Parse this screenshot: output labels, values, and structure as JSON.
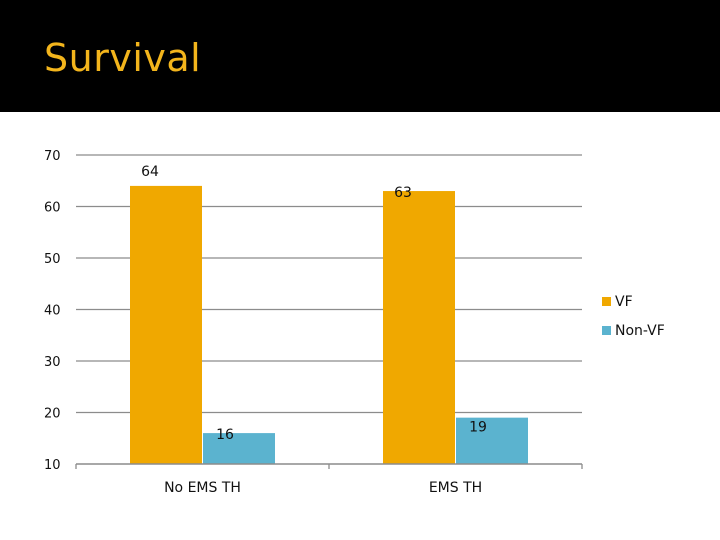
{
  "header": {
    "title": "Survival"
  },
  "colors": {
    "title": "#f3b51c",
    "band": "#000000",
    "vf": "#f0a800",
    "nonvf": "#5bb3cf"
  },
  "chart_data": {
    "type": "bar",
    "title": "Survival",
    "xlabel": "",
    "ylabel": "",
    "categories": [
      "No EMS TH",
      "EMS TH"
    ],
    "series": [
      {
        "name": "VF",
        "values": [
          64,
          63
        ],
        "labels": [
          "64",
          "63"
        ]
      },
      {
        "name": "Non-VF",
        "values": [
          16,
          19
        ],
        "labels": [
          "16",
          "19"
        ]
      }
    ],
    "ylim": [
      10,
      70
    ],
    "yticks": [
      10,
      20,
      30,
      40,
      50,
      60,
      70
    ],
    "ytick_labels": [
      "10",
      "20",
      "30",
      "40",
      "50",
      "60",
      "70"
    ],
    "grid": true,
    "legend": "right"
  }
}
